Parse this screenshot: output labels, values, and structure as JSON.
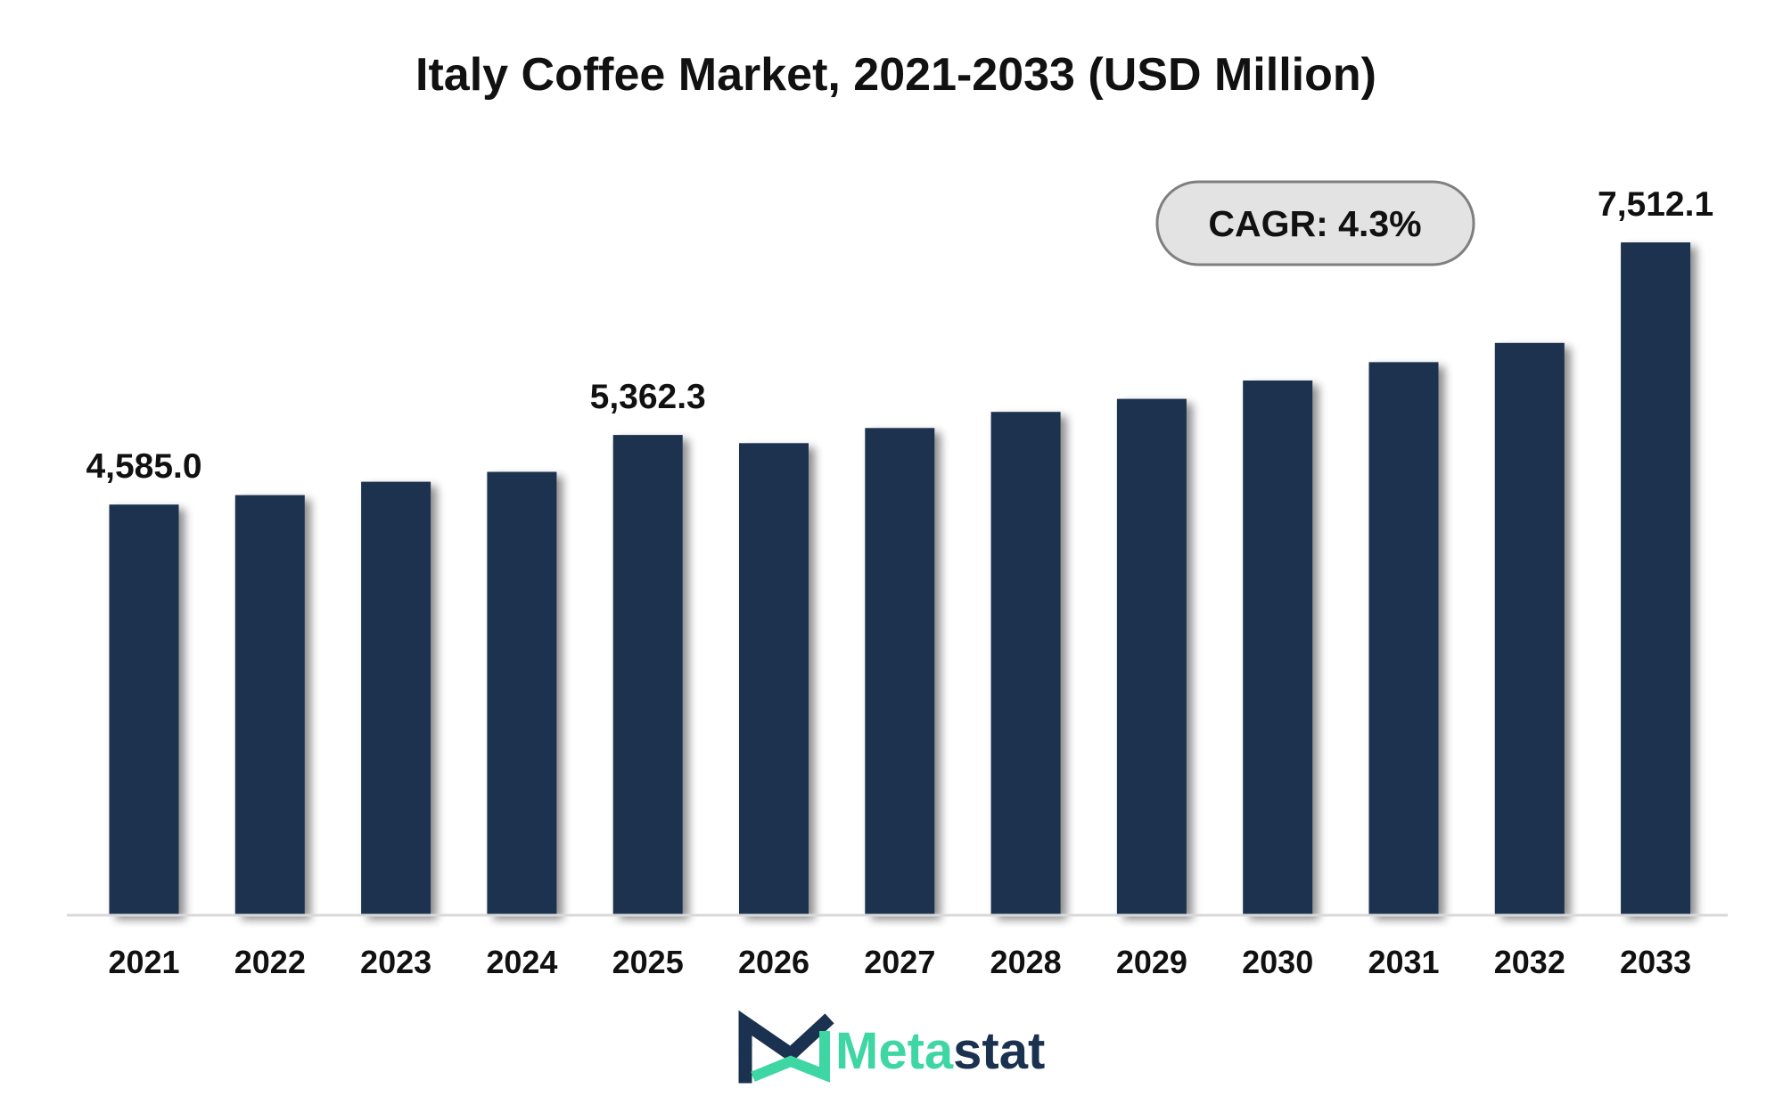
{
  "chart_data": {
    "type": "bar",
    "title": "Italy Coffee Market, 2021-2033 (USD Million)",
    "xlabel": "",
    "ylabel": "",
    "categories": [
      "2021",
      "2022",
      "2023",
      "2024",
      "2025",
      "2026",
      "2027",
      "2028",
      "2029",
      "2030",
      "2031",
      "2032",
      "2033"
    ],
    "values": [
      4585.0,
      4690,
      4840,
      4950,
      5362.3,
      5270,
      5440,
      5620,
      5765,
      5970,
      6175,
      6390,
      7512.1
    ],
    "data_labels": [
      {
        "category": "2021",
        "text": "4,585.0"
      },
      {
        "category": "2025",
        "text": "5,362.3"
      },
      {
        "category": "2033",
        "text": "7,512.1"
      }
    ],
    "ylim": [
      0,
      7512.1
    ],
    "grid": false,
    "legend": "none",
    "bar_color": "#1b3150",
    "annotation": {
      "label": "CAGR: 4.3%"
    }
  },
  "logo": {
    "text_part1": "Meta",
    "text_part2": "stat",
    "color_primary": "#1b3150",
    "color_accent": "#3ed6a3"
  },
  "colors": {
    "axis": "#d9d9d9",
    "pill_fill": "#e3e3e3",
    "pill_stroke": "#7f7f7f"
  }
}
